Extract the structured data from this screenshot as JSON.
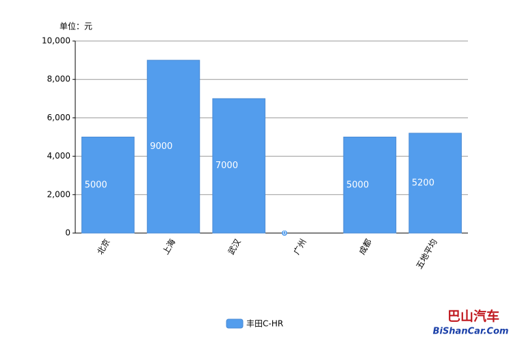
{
  "chart_data": {
    "type": "bar",
    "unit_label": "单位：元",
    "categories": [
      "北京",
      "上海",
      "武汉",
      "广州",
      "成都",
      "五地平均"
    ],
    "series": [
      {
        "name": "丰田C-HR",
        "color": "#539ded",
        "values": [
          5000,
          9000,
          7000,
          0,
          5000,
          5200
        ]
      }
    ],
    "ylim": [
      0,
      10000
    ],
    "yticks": [
      0,
      {
        "value": 2000,
        "label": "2,000"
      },
      {
        "value": 4000,
        "label": "4,000"
      },
      {
        "value": 6000,
        "label": "6,000"
      },
      {
        "value": 8000,
        "label": "8,000"
      },
      {
        "value": 10000,
        "label": "10,000"
      }
    ],
    "grid": true,
    "legend": "bottom",
    "watermark": {
      "line1": "巴山汽车",
      "line2": "BiShanCar.Com"
    }
  }
}
